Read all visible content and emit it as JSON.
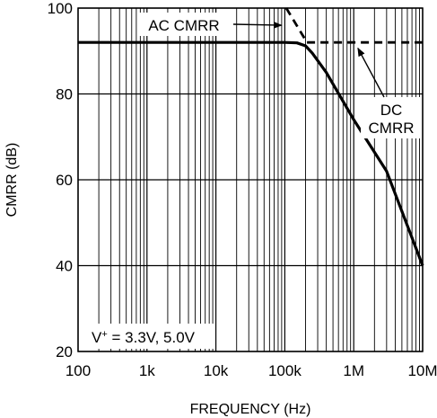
{
  "chart_data": {
    "type": "line",
    "title": "",
    "xlabel": "FREQUENCY (Hz)",
    "ylabel": "CMRR (dB)",
    "xscale": "log",
    "xlim": [
      100,
      10000000
    ],
    "ylim": [
      20,
      100
    ],
    "grid": true,
    "x_ticks": [
      {
        "value": 100,
        "label": "100"
      },
      {
        "value": 1000,
        "label": "1k"
      },
      {
        "value": 10000,
        "label": "10k"
      },
      {
        "value": 100000,
        "label": "100k"
      },
      {
        "value": 1000000,
        "label": "1M"
      },
      {
        "value": 10000000,
        "label": "10M"
      }
    ],
    "y_ticks": [
      {
        "value": 20,
        "label": "20"
      },
      {
        "value": 40,
        "label": "40"
      },
      {
        "value": 60,
        "label": "60"
      },
      {
        "value": 80,
        "label": "80"
      },
      {
        "value": 100,
        "label": "100"
      }
    ],
    "series": [
      {
        "name": "CMRR",
        "style": "solid",
        "x": [
          100,
          1000,
          10000,
          100000,
          150000,
          200000,
          250000,
          400000,
          1000000,
          3000000,
          10000000
        ],
        "y": [
          92,
          92,
          92,
          92,
          91.9,
          91.2,
          89.5,
          85,
          74,
          62,
          40
        ]
      },
      {
        "name": "AC CMRR",
        "style": "dashed",
        "x": [
          105000,
          210000
        ],
        "y": [
          100,
          92
        ]
      },
      {
        "name": "DC CMRR",
        "style": "dashed",
        "x": [
          210000,
          10000000
        ],
        "y": [
          92,
          92
        ]
      }
    ],
    "annotations": [
      {
        "id": "ac",
        "text": "AC CMRR",
        "lines": [
          "AC CMRR"
        ],
        "arrow_to": {
          "x": 95000,
          "y": 96
        }
      },
      {
        "id": "dc",
        "text": "DC CMRR",
        "lines": [
          "DC",
          "CMRR"
        ],
        "arrow_to": {
          "x": 1150000,
          "y": 91.5
        }
      },
      {
        "id": "cond",
        "text": "V+ = 3.3V, 5.0V",
        "parts": {
          "base": "V",
          "sup": "+",
          "rest": " = 3.3V, 5.0V"
        }
      }
    ]
  },
  "colors": {
    "line": "#000000",
    "grid": "#000000",
    "background": "#ffffff"
  }
}
